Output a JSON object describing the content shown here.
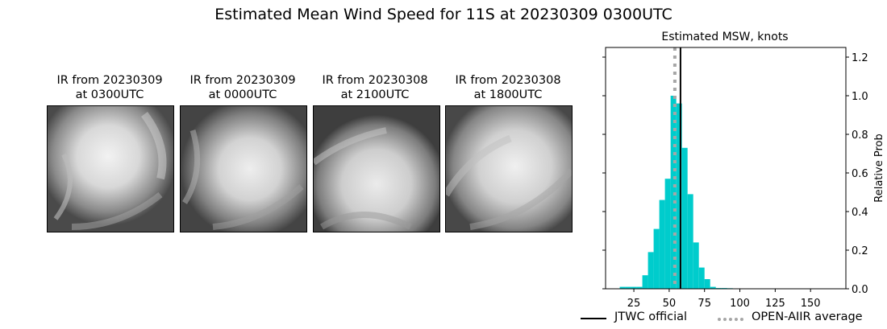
{
  "suptitle": "Estimated Mean Wind Speed for 11S at 20230309 0300UTC",
  "ir_panels": [
    {
      "line1": "IR from 20230309",
      "line2": "at 0300UTC"
    },
    {
      "line1": "IR from 20230309",
      "line2": "at 0000UTC"
    },
    {
      "line1": "IR from 20230308",
      "line2": "at 2100UTC"
    },
    {
      "line1": "IR from 20230308",
      "line2": "at 1800UTC"
    }
  ],
  "legend": {
    "official": "JTWC official",
    "average": "OPEN-AIIR average"
  },
  "colors": {
    "bars": "#00cccc",
    "official_line": "#000000",
    "average_line": "#a6a6a6"
  },
  "chart_data": {
    "type": "bar",
    "title": "Estimated MSW, knots",
    "xlabel": "",
    "ylabel": "Relative Prob",
    "xlim": [
      5,
      175
    ],
    "ylim": [
      0,
      1.25
    ],
    "xticks": [
      25,
      50,
      75,
      100,
      125,
      150
    ],
    "yticks": [
      0.0,
      0.2,
      0.4,
      0.6,
      0.8,
      1.0,
      1.2
    ],
    "yaxis_side": "right",
    "grid": false,
    "bin_width": 4,
    "bins": [
      {
        "x0": 15,
        "value": 0.01
      },
      {
        "x0": 19,
        "value": 0.01
      },
      {
        "x0": 23,
        "value": 0.01
      },
      {
        "x0": 27,
        "value": 0.01
      },
      {
        "x0": 31,
        "value": 0.07
      },
      {
        "x0": 35,
        "value": 0.19
      },
      {
        "x0": 39,
        "value": 0.31
      },
      {
        "x0": 43,
        "value": 0.46
      },
      {
        "x0": 47,
        "value": 0.57
      },
      {
        "x0": 51,
        "value": 1.0
      },
      {
        "x0": 55,
        "value": 0.96
      },
      {
        "x0": 59,
        "value": 0.73
      },
      {
        "x0": 63,
        "value": 0.49
      },
      {
        "x0": 67,
        "value": 0.24
      },
      {
        "x0": 71,
        "value": 0.11
      },
      {
        "x0": 75,
        "value": 0.05
      },
      {
        "x0": 79,
        "value": 0.01
      },
      {
        "x0": 83,
        "value": 0.004
      },
      {
        "x0": 87,
        "value": 0.004
      },
      {
        "x0": 91,
        "value": 0.003
      },
      {
        "x0": 95,
        "value": 0.002
      },
      {
        "x0": 99,
        "value": 0.002
      },
      {
        "x0": 103,
        "value": 0.002
      },
      {
        "x0": 107,
        "value": 0.002
      },
      {
        "x0": 111,
        "value": 0.002
      },
      {
        "x0": 115,
        "value": 0.002
      },
      {
        "x0": 119,
        "value": 0.002
      },
      {
        "x0": 123,
        "value": 0.002
      },
      {
        "x0": 127,
        "value": 0.002
      },
      {
        "x0": 131,
        "value": 0.002
      },
      {
        "x0": 135,
        "value": 0.002
      },
      {
        "x0": 139,
        "value": 0.002
      },
      {
        "x0": 143,
        "value": 0.002
      },
      {
        "x0": 147,
        "value": 0.002
      },
      {
        "x0": 151,
        "value": 0.002
      },
      {
        "x0": 155,
        "value": 0.002
      },
      {
        "x0": 159,
        "value": 0.002
      },
      {
        "x0": 163,
        "value": 0.002
      },
      {
        "x0": 167,
        "value": 0.002
      }
    ],
    "official_value": 58,
    "average_value": 54
  }
}
